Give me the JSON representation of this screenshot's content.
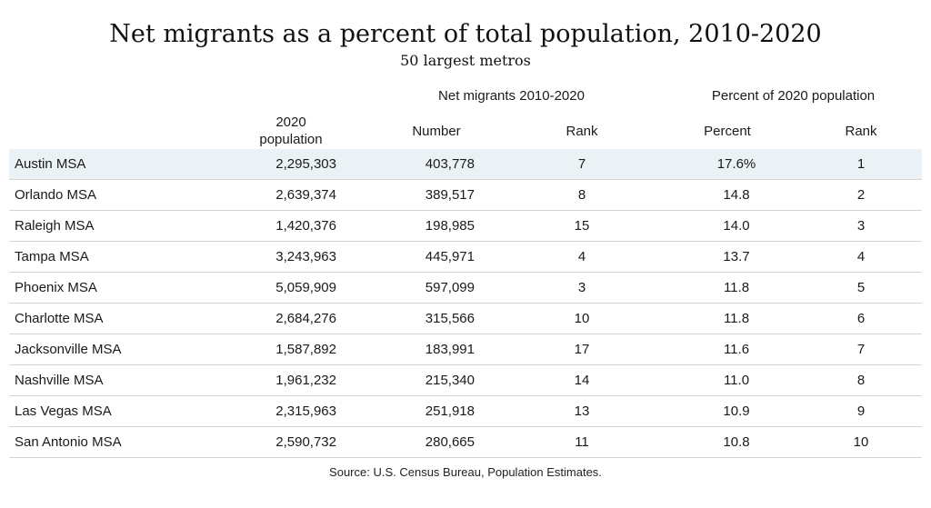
{
  "chart_data": {
    "type": "table",
    "title": "Net migrants as a percent of total population, 2010-2020",
    "subtitle": "50 largest metros",
    "group_headers": [
      "Net migrants 2010-2020",
      "Percent of 2020 population"
    ],
    "column_headers": {
      "population_line1": "2020",
      "population_line2": "population",
      "number": "Number",
      "rank": "Rank",
      "percent": "Percent",
      "percent_rank": "Rank"
    },
    "rows": [
      {
        "name": "Austin MSA",
        "population": "2,295,303",
        "number": "403,778",
        "rank": "7",
        "percent": "17.6%",
        "percent_rank": "1"
      },
      {
        "name": "Orlando MSA",
        "population": "2,639,374",
        "number": "389,517",
        "rank": "8",
        "percent": "14.8",
        "percent_rank": "2"
      },
      {
        "name": "Raleigh MSA",
        "population": "1,420,376",
        "number": "198,985",
        "rank": "15",
        "percent": "14.0",
        "percent_rank": "3"
      },
      {
        "name": "Tampa MSA",
        "population": "3,243,963",
        "number": "445,971",
        "rank": "4",
        "percent": "13.7",
        "percent_rank": "4"
      },
      {
        "name": "Phoenix MSA",
        "population": "5,059,909",
        "number": "597,099",
        "rank": "3",
        "percent": "11.8",
        "percent_rank": "5"
      },
      {
        "name": "Charlotte MSA",
        "population": "2,684,276",
        "number": "315,566",
        "rank": "10",
        "percent": "11.8",
        "percent_rank": "6"
      },
      {
        "name": "Jacksonville MSA",
        "population": "1,587,892",
        "number": "183,991",
        "rank": "17",
        "percent": "11.6",
        "percent_rank": "7"
      },
      {
        "name": "Nashville MSA",
        "population": "1,961,232",
        "number": "215,340",
        "rank": "14",
        "percent": "11.0",
        "percent_rank": "8"
      },
      {
        "name": "Las Vegas MSA",
        "population": "2,315,963",
        "number": "251,918",
        "rank": "13",
        "percent": "10.9",
        "percent_rank": "9"
      },
      {
        "name": "San Antonio MSA",
        "population": "2,590,732",
        "number": "280,665",
        "rank": "11",
        "percent": "10.8",
        "percent_rank": "10"
      }
    ],
    "highlight_color": "#eaf2f5",
    "source": "Source:  U.S. Census Bureau, Population Estimates."
  }
}
